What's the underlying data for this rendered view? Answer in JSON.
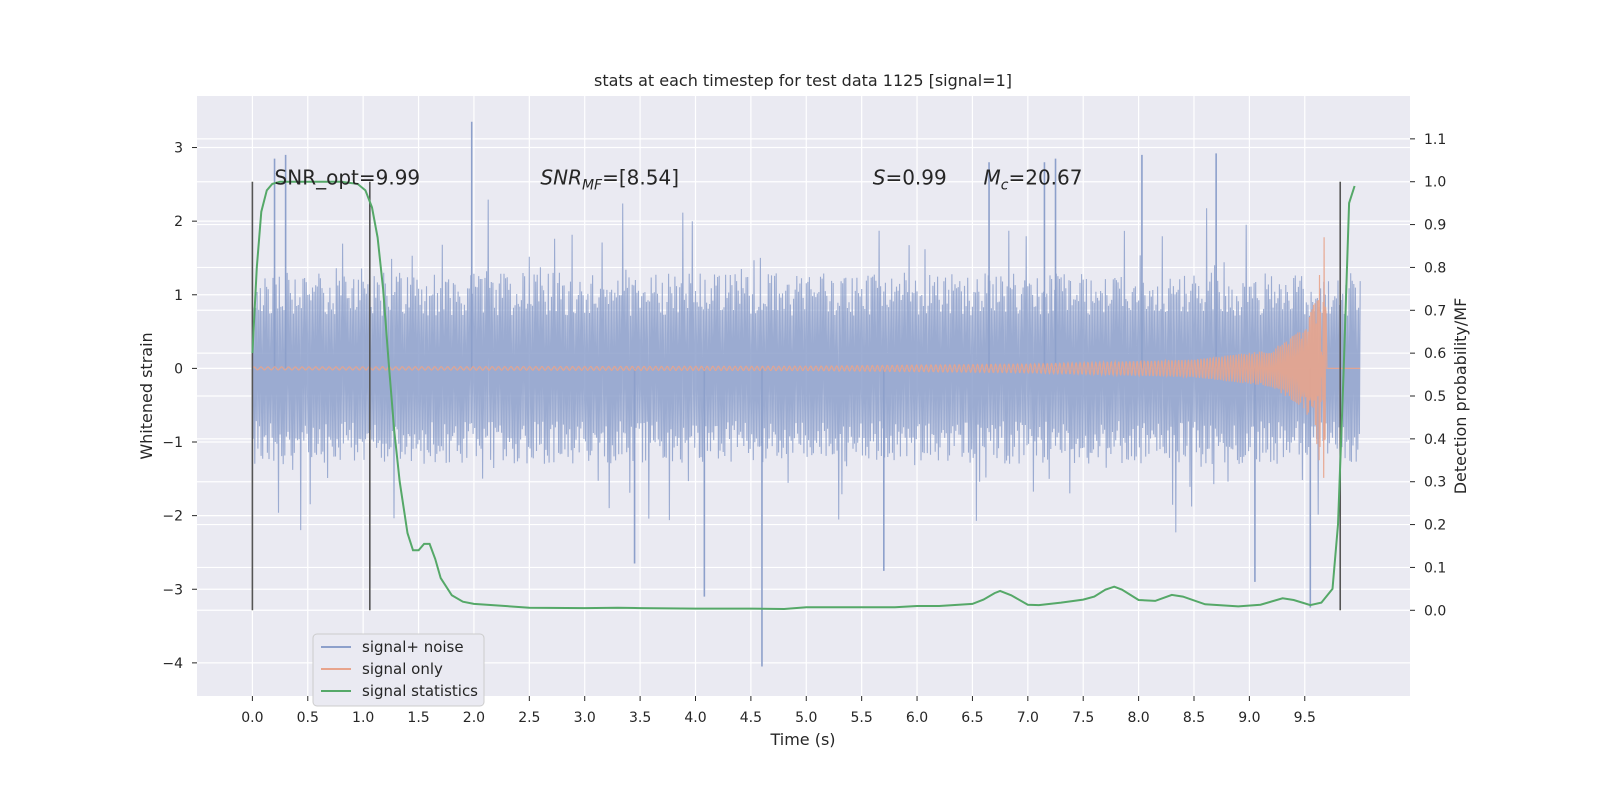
{
  "chart_data": {
    "type": "line",
    "title": "stats at each timestep for test data 1125 [signal=1]",
    "xlabel": "Time (s)",
    "ylabel": "Whitened strain",
    "ylabel_right": "Detection probability/MF",
    "xlim": [
      -0.5,
      10.45
    ],
    "ylim": [
      -4.45,
      3.7
    ],
    "ylim_right": [
      -0.2,
      1.2
    ],
    "x_ticks": [
      0.0,
      0.5,
      1.0,
      1.5,
      2.0,
      2.5,
      3.0,
      3.5,
      4.0,
      4.5,
      5.0,
      5.5,
      6.0,
      6.5,
      7.0,
      7.5,
      8.0,
      8.5,
      9.0,
      9.5
    ],
    "x_tick_labels": [
      "0.0",
      "0.5",
      "1.0",
      "1.5",
      "2.0",
      "2.5",
      "3.0",
      "3.5",
      "4.0",
      "4.5",
      "5.0",
      "5.5",
      "6.0",
      "6.5",
      "7.0",
      "7.5",
      "8.0",
      "8.5",
      "9.0",
      "9.5"
    ],
    "y_ticks": [
      -4,
      -3,
      -2,
      -1,
      0,
      1,
      2,
      3
    ],
    "y_tick_labels": [
      "−4",
      "−3",
      "−2",
      "−1",
      "0",
      "1",
      "2",
      "3"
    ],
    "y_ticks_right": [
      0.0,
      0.1,
      0.2,
      0.3,
      0.4,
      0.5,
      0.6,
      0.7,
      0.8,
      0.9,
      1.0,
      1.1
    ],
    "y_tick_labels_right": [
      "0.0",
      "0.1",
      "0.2",
      "0.3",
      "0.4",
      "0.5",
      "0.6",
      "0.7",
      "0.8",
      "0.9",
      "1.0",
      "1.1"
    ],
    "grid": true,
    "legend_position": "lower-left",
    "series": [
      {
        "name": "signal+ noise",
        "color": "#8da0cb",
        "axis": "left",
        "band_envelope": {
          "t": [
            0.0,
            10.0
          ],
          "typical_abs": 1.3,
          "peak_abs": 2.4,
          "spikes": [
            {
              "t": 1.98,
              "y": 3.35
            },
            {
              "t": 0.3,
              "y": 2.9
            },
            {
              "t": 0.2,
              "y": 2.85
            },
            {
              "t": 6.65,
              "y": 2.8
            },
            {
              "t": 7.15,
              "y": 2.8
            },
            {
              "t": 7.25,
              "y": 2.85
            },
            {
              "t": 8.03,
              "y": 2.9
            },
            {
              "t": 8.7,
              "y": 2.92
            },
            {
              "t": 4.6,
              "y": -4.05
            },
            {
              "t": 3.45,
              "y": -2.65
            },
            {
              "t": 4.08,
              "y": -3.1
            },
            {
              "t": 5.7,
              "y": -2.75
            },
            {
              "t": 9.05,
              "y": -2.9
            },
            {
              "t": 9.55,
              "y": -3.25
            }
          ]
        }
      },
      {
        "name": "signal only",
        "color": "#e8a48c",
        "axis": "left",
        "chirp_amplitude": {
          "t": [
            0.0,
            5.0,
            7.0,
            8.5,
            9.2,
            9.5,
            9.6,
            9.65,
            9.68,
            9.7,
            10.0
          ],
          "amp": [
            0.02,
            0.03,
            0.06,
            0.12,
            0.25,
            0.55,
            0.95,
            1.5,
            1.85,
            0.0,
            0.0
          ]
        }
      },
      {
        "name": "signal statistics",
        "color": "#55a868",
        "axis": "right",
        "x": [
          0.0,
          0.04,
          0.08,
          0.13,
          0.18,
          0.25,
          0.4,
          0.6,
          0.8,
          0.95,
          1.02,
          1.08,
          1.13,
          1.18,
          1.23,
          1.28,
          1.33,
          1.4,
          1.45,
          1.5,
          1.55,
          1.6,
          1.65,
          1.7,
          1.8,
          1.9,
          2.0,
          2.5,
          3.0,
          3.3,
          3.5,
          4.0,
          4.5,
          4.8,
          5.0,
          5.5,
          5.8,
          6.0,
          6.2,
          6.5,
          6.6,
          6.7,
          6.75,
          6.85,
          7.0,
          7.1,
          7.3,
          7.5,
          7.6,
          7.7,
          7.78,
          7.85,
          8.0,
          8.15,
          8.3,
          8.4,
          8.6,
          8.9,
          9.1,
          9.3,
          9.4,
          9.55,
          9.65,
          9.75,
          9.8,
          9.85,
          9.9,
          9.95
        ],
        "y": [
          0.6,
          0.8,
          0.93,
          0.98,
          0.995,
          1.0,
          1.0,
          1.0,
          1.0,
          0.995,
          0.98,
          0.94,
          0.87,
          0.75,
          0.58,
          0.42,
          0.3,
          0.18,
          0.14,
          0.14,
          0.155,
          0.155,
          0.12,
          0.075,
          0.035,
          0.02,
          0.015,
          0.006,
          0.005,
          0.006,
          0.005,
          0.004,
          0.004,
          0.003,
          0.007,
          0.007,
          0.007,
          0.01,
          0.01,
          0.015,
          0.025,
          0.04,
          0.045,
          0.035,
          0.013,
          0.012,
          0.018,
          0.025,
          0.032,
          0.048,
          0.055,
          0.048,
          0.024,
          0.022,
          0.036,
          0.032,
          0.014,
          0.009,
          0.013,
          0.028,
          0.024,
          0.012,
          0.018,
          0.05,
          0.2,
          0.55,
          0.95,
          0.99
        ]
      }
    ],
    "vertical_markers": [
      0.0,
      1.06,
      9.82
    ],
    "annotations": [
      {
        "text": "SNR_opt=9.99",
        "x": 0.2,
        "y": 2.5,
        "style": "plain"
      },
      {
        "text": "SNR",
        "sub": "MF",
        "rest": "=[8.54]",
        "x": 2.6,
        "y": 2.5,
        "style": "math"
      },
      {
        "text": "S",
        "rest": "=0.99",
        "x": 5.6,
        "y": 2.5,
        "style": "math"
      },
      {
        "text": "M",
        "sub": "c",
        "rest": "=20.67",
        "x": 6.6,
        "y": 2.5,
        "style": "math"
      }
    ]
  }
}
